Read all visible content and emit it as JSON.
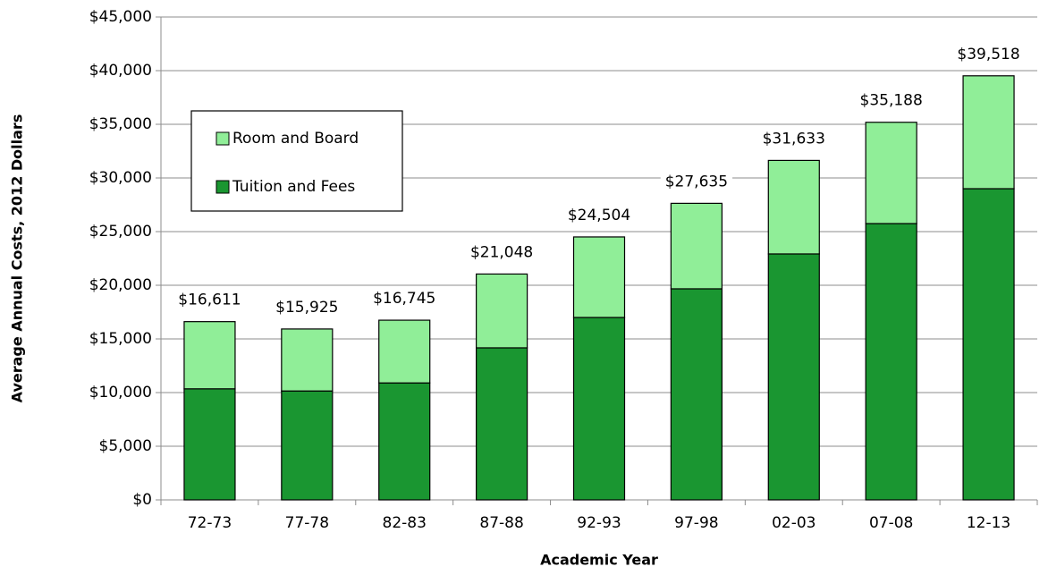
{
  "chart_data": {
    "type": "stacked_bar",
    "x_label": "Academic Year",
    "y_label": "Average Annual Costs, 2012 Dollars",
    "categories": [
      "72-73",
      "77-78",
      "82-83",
      "87-88",
      "92-93",
      "97-98",
      "02-03",
      "07-08",
      "12-13"
    ],
    "series": [
      {
        "name": "Tuition and Fees",
        "color": "#1a9631",
        "values": [
          10350,
          10150,
          10900,
          14170,
          17000,
          19670,
          22920,
          25750,
          29000
        ]
      },
      {
        "name": "Room and Board",
        "color": "#90ee98",
        "values": [
          6261,
          5775,
          5845,
          6878,
          7504,
          7965,
          8713,
          9438,
          10518
        ]
      }
    ],
    "totals": [
      16611,
      15925,
      16745,
      21048,
      24504,
      27635,
      31633,
      35188,
      39518
    ],
    "total_labels": [
      "$16,611",
      "$15,925",
      "$16,745",
      "$21,048",
      "$24,504",
      "$27,635",
      "$31,633",
      "$35,188",
      "$39,518"
    ],
    "ylim": [
      0,
      45000
    ],
    "yticks": [
      {
        "value": 0,
        "label": "$0"
      },
      {
        "value": 5000,
        "label": "$5,000"
      },
      {
        "value": 10000,
        "label": "$10,000"
      },
      {
        "value": 15000,
        "label": "$15,000"
      },
      {
        "value": 20000,
        "label": "$20,000"
      },
      {
        "value": 25000,
        "label": "$25,000"
      },
      {
        "value": 30000,
        "label": "$30,000"
      },
      {
        "value": 35000,
        "label": "$35,000"
      },
      {
        "value": 40000,
        "label": "$40,000"
      },
      {
        "value": 45000,
        "label": "$45,000"
      }
    ],
    "grid": true,
    "legend": "upper left"
  }
}
